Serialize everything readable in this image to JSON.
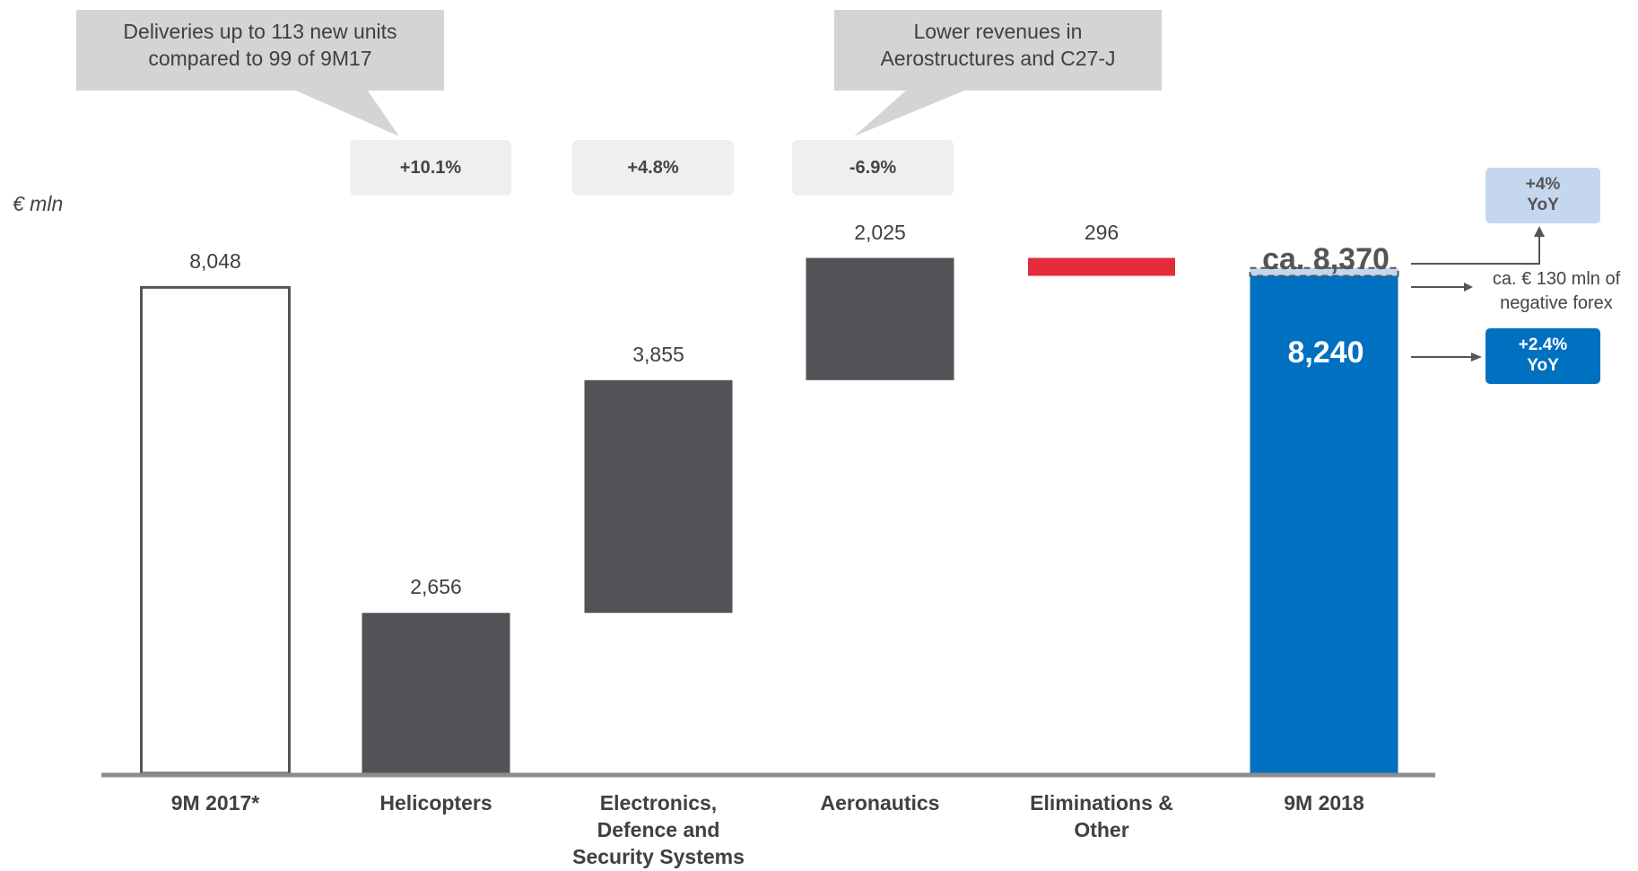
{
  "chart_data": {
    "type": "bar",
    "subtype": "waterfall",
    "unit_label": "€ mln",
    "categories": [
      "9M 2017*",
      "Helicopters",
      "Electronics, Defence and Security Systems",
      "Aeronautics",
      "Eliminations & Other",
      "9M 2018"
    ],
    "category_lines": [
      [
        "9M 2017*"
      ],
      [
        "Helicopters"
      ],
      [
        "Electronics,",
        "Defence and",
        "Security Systems"
      ],
      [
        "Aeronautics"
      ],
      [
        "Eliminations &",
        "Other"
      ],
      [
        "9M 2018"
      ]
    ],
    "bars": [
      {
        "category": "9M 2017*",
        "kind": "total",
        "start": 0,
        "end": 8048,
        "label": "8,048",
        "color": "#ffffff"
      },
      {
        "category": "Helicopters",
        "kind": "segment",
        "start": 0,
        "end": 2656,
        "label": "2,656",
        "color": "#535257"
      },
      {
        "category": "Electronics, Defence and Security Systems",
        "kind": "segment",
        "start": 2656,
        "end": 6511,
        "label": "3,855",
        "color": "#535257"
      },
      {
        "category": "Aeronautics",
        "kind": "segment",
        "start": 6511,
        "end": 8536,
        "label": "2,025",
        "color": "#535257"
      },
      {
        "category": "Eliminations & Other",
        "kind": "segment",
        "start": 8240,
        "end": 8536,
        "label": "296",
        "color": "#e32c3a"
      },
      {
        "category": "9M 2018",
        "kind": "total",
        "start": 0,
        "end": 8240,
        "label": "8,240",
        "color": "#0070c0"
      }
    ],
    "growth_labels": [
      {
        "category": "Helicopters",
        "text": "+10.1%"
      },
      {
        "category": "Electronics, Defence and Security Systems",
        "text": "+4.8%"
      },
      {
        "category": "Aeronautics",
        "text": "-6.9%"
      }
    ],
    "annotations": {
      "callout_helicopters": "Deliveries up to 113 new units compared to 99 of 9M17",
      "callout_aeronautics": "Lower revenues in Aerostructures and C27-J",
      "forex_total_value": 8370,
      "forex_total_label": "ca. 8,370",
      "forex_note": "ca. € 130 mln of negative forex",
      "yoy_forex_adjusted": "+4% YoY",
      "yoy_reported": "+2.4% YoY"
    },
    "ylim": [
      0,
      8700
    ],
    "grid": false,
    "legend": "none",
    "title": "",
    "xlabel": "",
    "ylabel": ""
  },
  "text": {
    "unit": "€ mln",
    "callout1_line1": "Deliveries up to 113 new units",
    "callout1_line2": "compared to 99 of 9M17",
    "callout2_line1": "Lower revenues in",
    "callout2_line2": "Aerostructures and C27-J",
    "pct_helicopters": "+10.1%",
    "pct_electronics": "+4.8%",
    "pct_aeronautics": "-6.9%",
    "total_ca": "ca. 8,370",
    "total_value": "8,240",
    "yoy_top_line1": "+4%",
    "yoy_top_line2": "YoY",
    "yoy_bottom_line1": "+2.4%",
    "yoy_bottom_line2": "YoY",
    "forex_line1": "ca. € 130 mln of",
    "forex_line2": "negative forex"
  },
  "colors": {
    "segment": "#535257",
    "eliminations": "#e32c3a",
    "total_2018": "#0070c0",
    "callout": "#d4d4d4",
    "pct_box": "#efefef",
    "yoy_light": "#c5d7ee",
    "axis": "#8c8c8c"
  }
}
